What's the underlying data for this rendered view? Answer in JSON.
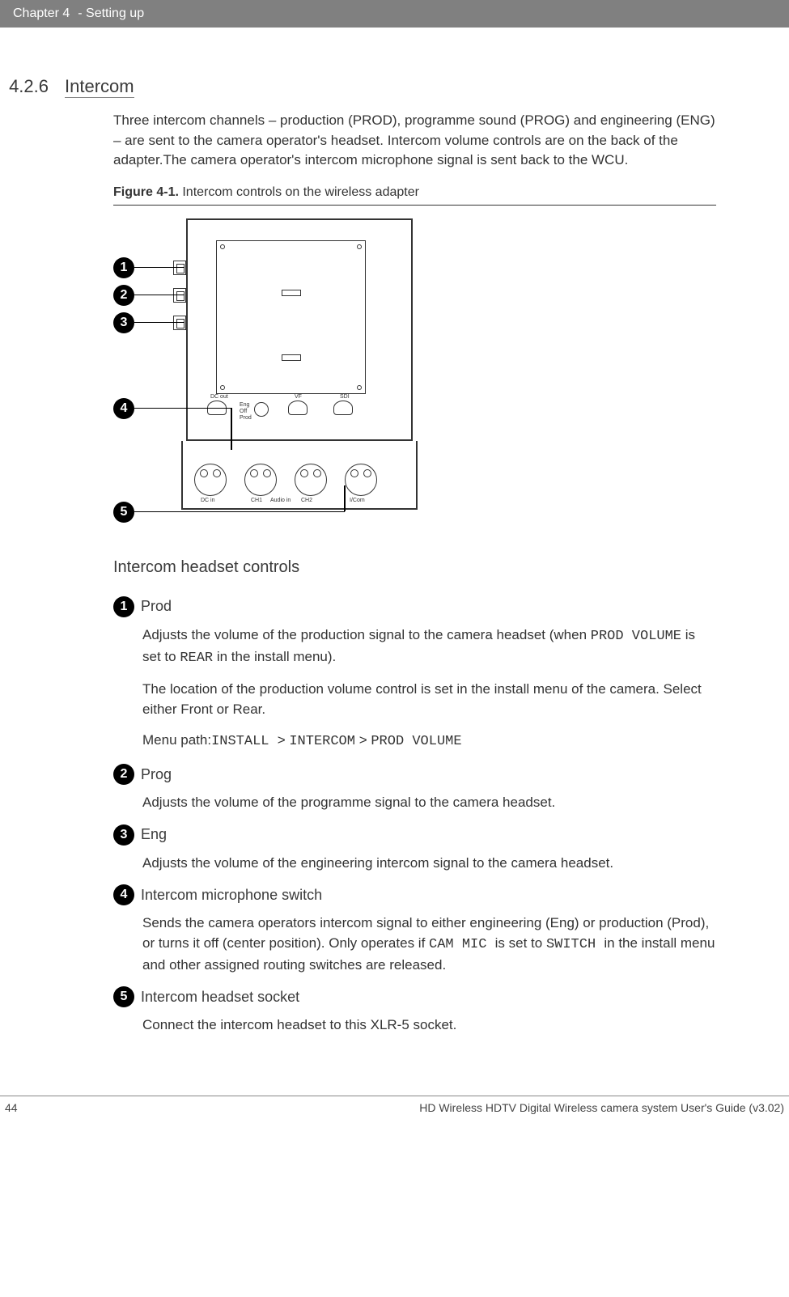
{
  "header": {
    "chapter": "Chapter 4",
    "title": "- Setting up"
  },
  "section": {
    "number": "4.2.6",
    "title": "Intercom",
    "intro": "Three intercom channels – production (PROD), programme sound (PROG) and engineering (ENG) – are sent to the camera operator's headset. Intercom volume controls are on the back of the adapter.The camera operator's intercom microphone signal is sent back to the WCU."
  },
  "figure": {
    "label_bold": "Figure 4-1.",
    "label_rest": " Intercom controls on the wireless adapter",
    "callouts": [
      "1",
      "2",
      "3",
      "4",
      "5"
    ],
    "device_labels": {
      "dcout": "DC out",
      "eng": "Eng",
      "off": "Off",
      "prod": "Prod",
      "vf": "VF",
      "sdi": "SDI",
      "dcin": "DC in",
      "ch1": "CH1",
      "audioin": "Audio in",
      "ch2": "CH2",
      "icom": "I/Com"
    }
  },
  "subhead": "Intercom headset controls",
  "items": [
    {
      "num": "1",
      "title": "Prod",
      "paras": [
        {
          "segments": [
            {
              "t": "Adjusts the volume of the production signal to the camera headset (when "
            },
            {
              "t": "PROD VOLUME",
              "mono": true
            },
            {
              "t": " is set to "
            },
            {
              "t": "REAR",
              "mono": true
            },
            {
              "t": " in the install menu)."
            }
          ]
        },
        {
          "segments": [
            {
              "t": "The location of the production volume control is set in the install menu of the camera. Select either Front or Rear."
            }
          ]
        },
        {
          "segments": [
            {
              "t": "Menu path:"
            },
            {
              "t": "INSTALL ",
              "mono": true
            },
            {
              "t": " > "
            },
            {
              "t": "INTERCOM",
              "mono": true
            },
            {
              "t": " > "
            },
            {
              "t": "PROD VOLUME",
              "mono": true
            }
          ]
        }
      ]
    },
    {
      "num": "2",
      "title": "Prog",
      "paras": [
        {
          "segments": [
            {
              "t": "Adjusts the volume of the programme signal to the camera headset."
            }
          ]
        }
      ]
    },
    {
      "num": "3",
      "title": "Eng",
      "paras": [
        {
          "segments": [
            {
              "t": "Adjusts the volume of the engineering intercom signal to the camera headset."
            }
          ]
        }
      ]
    },
    {
      "num": "4",
      "title": "Intercom microphone switch",
      "paras": [
        {
          "segments": [
            {
              "t": "Sends the camera operators intercom signal to either engineering (Eng) or production (Prod), or turns it off (center position). Only operates if "
            },
            {
              "t": "CAM MIC ",
              "mono": true
            },
            {
              "t": " is set to "
            },
            {
              "t": "SWITCH ",
              "mono": true
            },
            {
              "t": " in the install menu and other assigned routing switches are released."
            }
          ]
        }
      ]
    },
    {
      "num": "5",
      "title": "Intercom headset socket",
      "paras": [
        {
          "segments": [
            {
              "t": "Connect the intercom headset to this XLR-5 socket."
            }
          ]
        }
      ]
    }
  ],
  "footer": {
    "page": "44",
    "doc": "HD Wireless HDTV Digital Wireless camera system User's Guide (v3.02)"
  },
  "colors": {
    "header_bg": "#808080",
    "header_fg": "#ffffff",
    "text": "#333333",
    "bullet_bg": "#000000"
  }
}
